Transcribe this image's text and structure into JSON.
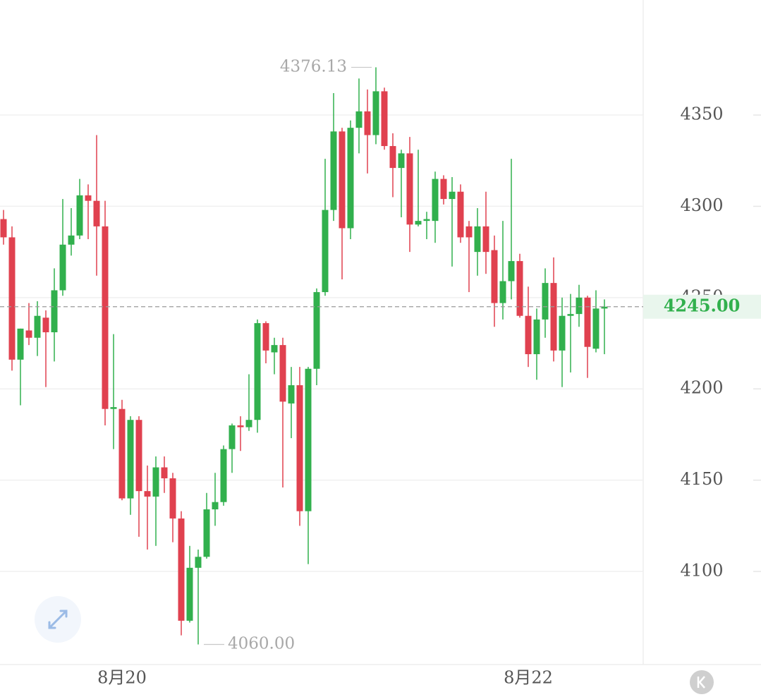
{
  "chart_data": {
    "type": "candlestick",
    "categories": [
      null,
      null,
      null,
      null,
      null,
      null,
      null,
      null,
      null,
      null,
      null,
      null,
      null,
      null,
      "8月20",
      null,
      null,
      null,
      null,
      null,
      null,
      null,
      null,
      null,
      null,
      null,
      null,
      null,
      null,
      null,
      null,
      null,
      null,
      null,
      null,
      null,
      null,
      null,
      null,
      null,
      null,
      null,
      null,
      null,
      null,
      null,
      null,
      null,
      null,
      null,
      null,
      null,
      null,
      null,
      null,
      null,
      null,
      null,
      null,
      null,
      null,
      null,
      "8月22",
      null,
      null,
      null,
      null,
      null,
      null,
      null,
      null,
      null
    ],
    "open": [
      4293,
      4283,
      4216,
      4232,
      4228,
      4239,
      4231,
      4254,
      4279,
      4284,
      4306,
      4303,
      4289,
      4189,
      4189,
      4140,
      4183,
      4144,
      4141,
      4157,
      4151,
      4129,
      4073,
      4102,
      4108,
      4134,
      4138,
      4167,
      4180,
      4179,
      4183,
      4236,
      4220,
      4224,
      4192,
      4202,
      4133,
      4211,
      4253,
      4298,
      4341,
      4288,
      4343,
      4352,
      4339,
      4363,
      4333,
      4321,
      4329,
      4290,
      4292,
      4292,
      4315,
      4304,
      4308,
      4289,
      4275,
      4289,
      4276,
      4247,
      4259,
      4270,
      4240,
      4219,
      4238,
      4258,
      4221,
      4240,
      4241,
      4250,
      4222,
      4244
    ],
    "high": [
      4298,
      4289,
      4233,
      4247,
      4248,
      4243,
      4266,
      4304,
      4299,
      4315,
      4312,
      4339,
      4303,
      4230,
      4194,
      4185,
      4185,
      4158,
      4163,
      4163,
      4154,
      4133,
      4114,
      4112,
      4143,
      4154,
      4169,
      4181,
      4185,
      4208,
      4238,
      4237,
      4228,
      4228,
      4212,
      4212,
      4212,
      4255,
      4326,
      4362,
      4343,
      4347,
      4370,
      4364,
      4376.13,
      4365,
      4340,
      4331,
      4338,
      4331,
      4297,
      4319,
      4317,
      4316,
      4312,
      4292,
      4299,
      4308,
      4284,
      4292,
      4326,
      4274,
      4256,
      4244,
      4266,
      4272,
      4250,
      4252,
      4257,
      4251,
      4254,
      4249
    ],
    "low": [
      4279,
      4210,
      4191,
      4224,
      4218,
      4201,
      4215,
      4251,
      4273,
      4282,
      4282,
      4262,
      4180,
      4167,
      4139,
      4131,
      4119,
      4112,
      4114,
      4143,
      4116,
      4065,
      4072,
      4060,
      4107,
      4125,
      4136,
      4154,
      4166,
      4177,
      4176,
      4214,
      4208,
      4146,
      4173,
      4125,
      4104,
      4202,
      4251,
      4292,
      4260,
      4282,
      4329,
      4318,
      4334,
      4331,
      4305,
      4294,
      4275,
      4289,
      4282,
      4280,
      4301,
      4267,
      4280,
      4253,
      4262,
      4263,
      4234,
      4238,
      4249,
      4239,
      4212,
      4205,
      4228,
      4215,
      4201,
      4209,
      4234,
      4206,
      4220,
      4219
    ],
    "close": [
      4283,
      4216,
      4233,
      4228,
      4240,
      4231,
      4254,
      4279,
      4284,
      4306,
      4303,
      4289,
      4189,
      4190,
      4140,
      4183,
      4144,
      4141,
      4157,
      4151,
      4129,
      4073,
      4102,
      4108,
      4134,
      4138,
      4167,
      4180,
      4179,
      4183,
      4236,
      4221,
      4224,
      4193,
      4202,
      4133,
      4211,
      4253,
      4298,
      4341,
      4288,
      4343,
      4352,
      4339,
      4363,
      4333,
      4321,
      4329,
      4290,
      4292,
      4293,
      4315,
      4304,
      4308,
      4283,
      4283,
      4289,
      4275,
      4247,
      4259,
      4270,
      4240,
      4219,
      4238,
      4258,
      4221,
      4240,
      4241,
      4250,
      4223,
      4244,
      4245
    ],
    "up_color": "#31b04d",
    "down_color": "#e0414f",
    "ylim": [
      4049,
      4413
    ],
    "yticks": [
      4100,
      4150,
      4200,
      4250,
      4300,
      4350
    ],
    "grid": true,
    "last_price": {
      "value": 4245,
      "label": "4245.00"
    },
    "annotations": [
      {
        "value": 4376.13,
        "label": "4376.13"
      },
      {
        "value": 4060,
        "label": "4060.00"
      }
    ]
  }
}
